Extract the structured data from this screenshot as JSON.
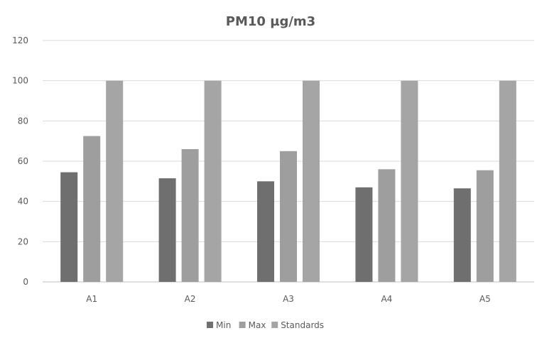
{
  "chart_data": {
    "type": "bar",
    "title": "PM10 µg/m3",
    "xlabel": "",
    "ylabel": "",
    "categories": [
      "A1",
      "A2",
      "A3",
      "A4",
      "A5"
    ],
    "ylim": [
      0,
      120
    ],
    "yticks": [
      0,
      20,
      40,
      60,
      80,
      100,
      120
    ],
    "grid": true,
    "legend_position": "bottom",
    "series": [
      {
        "name": "Min",
        "color": "#6f6f6f",
        "values": [
          54.5,
          51.5,
          50,
          47,
          46.5
        ]
      },
      {
        "name": "Max",
        "color": "#9e9e9e",
        "values": [
          72.5,
          66,
          65,
          56,
          55.5
        ]
      },
      {
        "name": "Standards",
        "color": "#a5a5a5",
        "values": [
          100,
          100,
          100,
          100,
          100
        ]
      }
    ]
  }
}
